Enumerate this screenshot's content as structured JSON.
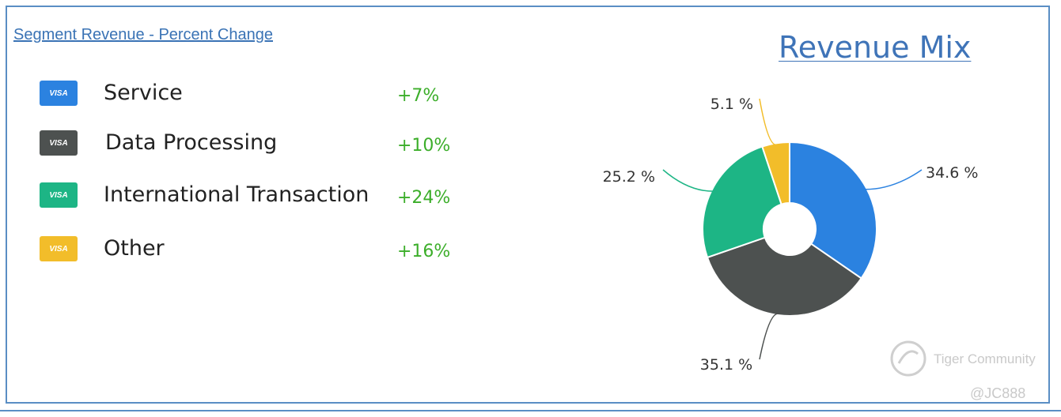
{
  "header": {
    "link_title": "Segment Revenue - Percent Change",
    "panel_title": "Revenue Mix"
  },
  "segments": [
    {
      "name": "Service",
      "change": "+7%",
      "card_text": "VISA",
      "color": "#2b82e0"
    },
    {
      "name": "Data Processing",
      "change": "+10%",
      "card_text": "VISA",
      "color": "#4d5150"
    },
    {
      "name": "International Transaction",
      "change": "+24%",
      "card_text": "VISA",
      "color": "#1db585"
    },
    {
      "name": "Other",
      "change": "+16%",
      "card_text": "VISA",
      "color": "#f2bd2a"
    }
  ],
  "chart_data": {
    "type": "pie",
    "donut": true,
    "title": "Revenue Mix",
    "categories": [
      "Service",
      "Data Processing",
      "International Transaction",
      "Other"
    ],
    "values": [
      34.6,
      35.1,
      25.2,
      5.1
    ],
    "labels": [
      "34.6 %",
      "35.1 %",
      "25.2 %",
      "5.1 %"
    ],
    "colors": [
      "#2b82e0",
      "#4d5150",
      "#1db585",
      "#f2bd2a"
    ],
    "start": "12 o'clock",
    "direction": "clockwise"
  },
  "watermark": {
    "brand": "Tiger Community",
    "handle": "@JC888"
  }
}
